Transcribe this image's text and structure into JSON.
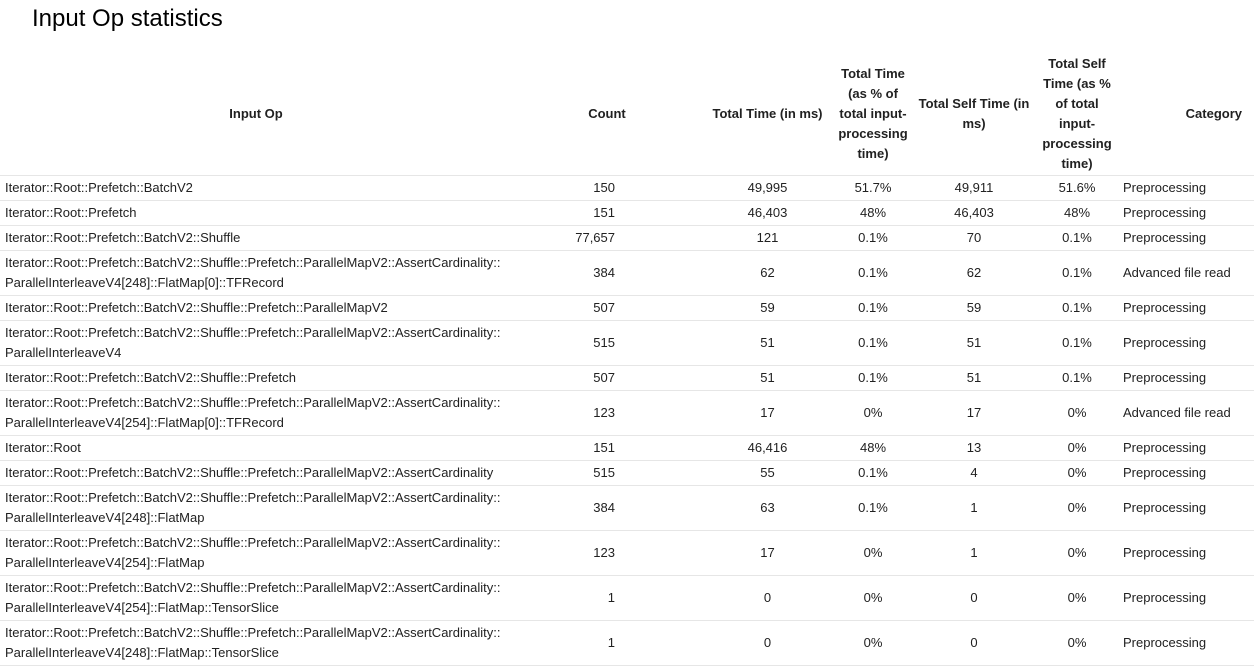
{
  "page": {
    "title": "Input Op statistics"
  },
  "table": {
    "headers": [
      "Input Op",
      "Count",
      "Total Time (in ms)",
      "Total Time (as % of total input-processing time)",
      "Total Self Time (in ms)",
      "Total Self Time (as % of total input-processing time)",
      "Category"
    ],
    "rows": [
      {
        "op_line1": "Iterator::Root::Prefetch::BatchV2",
        "op_line2": "",
        "count": "150",
        "total_time": "49,995",
        "total_time_pct": "51.7%",
        "self_time": "49,911",
        "self_time_pct": "51.6%",
        "category": "Preprocessing"
      },
      {
        "op_line1": "Iterator::Root::Prefetch",
        "op_line2": "",
        "count": "151",
        "total_time": "46,403",
        "total_time_pct": "48%",
        "self_time": "46,403",
        "self_time_pct": "48%",
        "category": "Preprocessing"
      },
      {
        "op_line1": "Iterator::Root::Prefetch::BatchV2::Shuffle",
        "op_line2": "",
        "count": "77,657",
        "total_time": "121",
        "total_time_pct": "0.1%",
        "self_time": "70",
        "self_time_pct": "0.1%",
        "category": "Preprocessing"
      },
      {
        "op_line1": "Iterator::Root::Prefetch::BatchV2::Shuffle::Prefetch::ParallelMapV2::AssertCardinality::",
        "op_line2": "ParallelInterleaveV4[248]::FlatMap[0]::TFRecord",
        "count": "384",
        "total_time": "62",
        "total_time_pct": "0.1%",
        "self_time": "62",
        "self_time_pct": "0.1%",
        "category": "Advanced file read"
      },
      {
        "op_line1": "Iterator::Root::Prefetch::BatchV2::Shuffle::Prefetch::ParallelMapV2",
        "op_line2": "",
        "count": "507",
        "total_time": "59",
        "total_time_pct": "0.1%",
        "self_time": "59",
        "self_time_pct": "0.1%",
        "category": "Preprocessing"
      },
      {
        "op_line1": "Iterator::Root::Prefetch::BatchV2::Shuffle::Prefetch::ParallelMapV2::AssertCardinality::",
        "op_line2": "ParallelInterleaveV4",
        "count": "515",
        "total_time": "51",
        "total_time_pct": "0.1%",
        "self_time": "51",
        "self_time_pct": "0.1%",
        "category": "Preprocessing"
      },
      {
        "op_line1": "Iterator::Root::Prefetch::BatchV2::Shuffle::Prefetch",
        "op_line2": "",
        "count": "507",
        "total_time": "51",
        "total_time_pct": "0.1%",
        "self_time": "51",
        "self_time_pct": "0.1%",
        "category": "Preprocessing"
      },
      {
        "op_line1": "Iterator::Root::Prefetch::BatchV2::Shuffle::Prefetch::ParallelMapV2::AssertCardinality::",
        "op_line2": "ParallelInterleaveV4[254]::FlatMap[0]::TFRecord",
        "count": "123",
        "total_time": "17",
        "total_time_pct": "0%",
        "self_time": "17",
        "self_time_pct": "0%",
        "category": "Advanced file read"
      },
      {
        "op_line1": "Iterator::Root",
        "op_line2": "",
        "count": "151",
        "total_time": "46,416",
        "total_time_pct": "48%",
        "self_time": "13",
        "self_time_pct": "0%",
        "category": "Preprocessing"
      },
      {
        "op_line1": "Iterator::Root::Prefetch::BatchV2::Shuffle::Prefetch::ParallelMapV2::AssertCardinality",
        "op_line2": "",
        "count": "515",
        "total_time": "55",
        "total_time_pct": "0.1%",
        "self_time": "4",
        "self_time_pct": "0%",
        "category": "Preprocessing"
      },
      {
        "op_line1": "Iterator::Root::Prefetch::BatchV2::Shuffle::Prefetch::ParallelMapV2::AssertCardinality::",
        "op_line2": "ParallelInterleaveV4[248]::FlatMap",
        "count": "384",
        "total_time": "63",
        "total_time_pct": "0.1%",
        "self_time": "1",
        "self_time_pct": "0%",
        "category": "Preprocessing"
      },
      {
        "op_line1": "Iterator::Root::Prefetch::BatchV2::Shuffle::Prefetch::ParallelMapV2::AssertCardinality::",
        "op_line2": "ParallelInterleaveV4[254]::FlatMap",
        "count": "123",
        "total_time": "17",
        "total_time_pct": "0%",
        "self_time": "1",
        "self_time_pct": "0%",
        "category": "Preprocessing"
      },
      {
        "op_line1": "Iterator::Root::Prefetch::BatchV2::Shuffle::Prefetch::ParallelMapV2::AssertCardinality::",
        "op_line2": "ParallelInterleaveV4[254]::FlatMap::TensorSlice",
        "count": "1",
        "total_time": "0",
        "total_time_pct": "0%",
        "self_time": "0",
        "self_time_pct": "0%",
        "category": "Preprocessing"
      },
      {
        "op_line1": "Iterator::Root::Prefetch::BatchV2::Shuffle::Prefetch::ParallelMapV2::AssertCardinality::",
        "op_line2": "ParallelInterleaveV4[248]::FlatMap::TensorSlice",
        "count": "1",
        "total_time": "0",
        "total_time_pct": "0%",
        "self_time": "0",
        "self_time_pct": "0%",
        "category": "Preprocessing"
      }
    ]
  }
}
